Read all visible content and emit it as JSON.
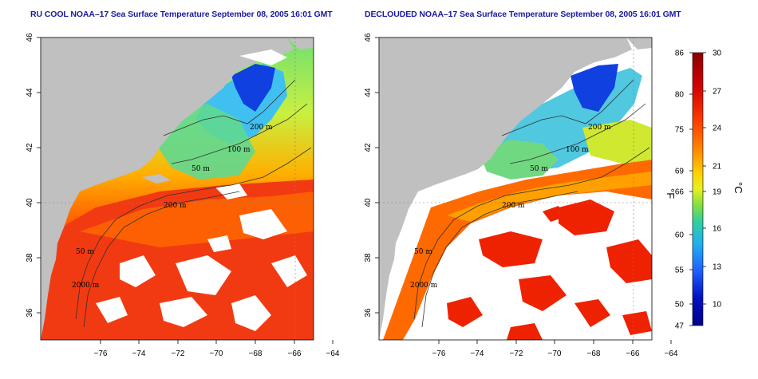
{
  "panels": [
    {
      "title": "RU COOL NOAA–17 Sea Surface Temperature September 08, 2005 16:01 GMT",
      "contours": [
        "200 m",
        "100 m",
        "50 m",
        "200 m",
        "50 m",
        "2000 m"
      ]
    },
    {
      "title": "DECLOUDED NOAA–17 Sea Surface Temperature September 08, 2005 16:01 GMT",
      "contours": [
        "200 m",
        "100 m",
        "50 m",
        "200 m",
        "50 m",
        "2000 m"
      ]
    }
  ],
  "axes": {
    "x_ticks": [
      "−76",
      "−74",
      "−72",
      "−70",
      "−68",
      "−66",
      "−64"
    ],
    "y_ticks": [
      "46",
      "44",
      "42",
      "40",
      "38",
      "36"
    ]
  },
  "colorbar": {
    "fahrenheit_ticks": [
      "86",
      "80",
      "75",
      "69",
      "66",
      "60",
      "55",
      "50",
      "47"
    ],
    "celsius_ticks": [
      "30",
      "27",
      "24",
      "21",
      "19",
      "16",
      "13",
      "10"
    ],
    "fahrenheit_unit": "°F",
    "celsius_unit": "°C",
    "colors": [
      "#8b0000",
      "#cc0000",
      "#ff2a00",
      "#ff7a00",
      "#ffc000",
      "#f0f020",
      "#80e040",
      "#30d0a0",
      "#20b0f0",
      "#2060ff",
      "#0010c0",
      "#00008b"
    ]
  },
  "map_colors": {
    "land": "#c0c0c0",
    "cloud": "#ffffff"
  }
}
